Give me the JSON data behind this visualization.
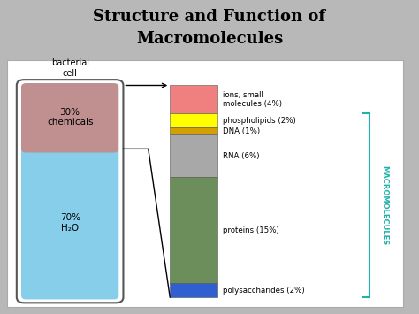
{
  "title_line1": "Structure and Function of",
  "title_line2": "Macromolecules",
  "background_color": "#b8b8b8",
  "cell_label": "bacterial\ncell",
  "chemical_pct": "30%\nchemicals",
  "water_pct": "70%\nH₂O",
  "chemical_color": "#c09090",
  "water_color": "#87ceeb",
  "bar_segments_topdown": [
    {
      "label": "ions, small\nmolecules (4%)",
      "pct": 4,
      "color": "#f08080"
    },
    {
      "label": "phospholipids (2%)",
      "pct": 2,
      "color": "#ffff00"
    },
    {
      "label": "DNA (1%)",
      "pct": 1,
      "color": "#d4a000"
    },
    {
      "label": "RNA (6%)",
      "pct": 6,
      "color": "#a8a8a8"
    },
    {
      "label": "proteins (15%)",
      "pct": 15,
      "color": "#6b8e5a"
    },
    {
      "label": "polysaccharides (2%)",
      "pct": 2,
      "color": "#3060d0"
    }
  ],
  "macromolecules_label": "MACROMOLECULES",
  "macromolecules_color": "#20b2aa"
}
